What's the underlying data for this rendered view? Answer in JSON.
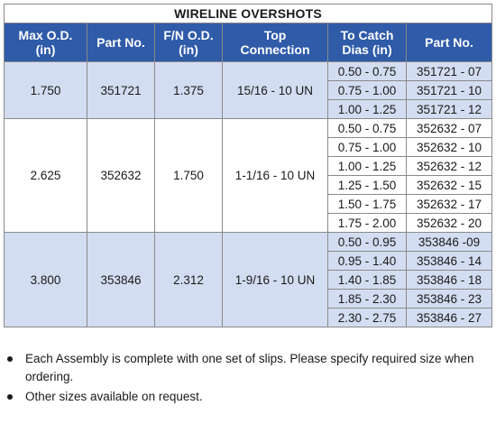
{
  "table": {
    "title": "WIRELINE OVERSHOTS",
    "headers": [
      [
        "Max O.D.",
        "(in)"
      ],
      [
        "Part No.",
        ""
      ],
      [
        "F/N O.D.",
        "(in)"
      ],
      [
        "Top",
        "Connection"
      ],
      [
        "To Catch",
        "Dias (in)"
      ],
      [
        "Part No.",
        ""
      ]
    ],
    "groups": [
      {
        "max_od": "1.750",
        "part_no": "351721",
        "fn_od": "1.375",
        "top_connection": "15/16 - 10 UN",
        "rows": [
          {
            "catch": "0.50 - 0.75",
            "part": "351721 - 07"
          },
          {
            "catch": "0.75 - 1.00",
            "part": "351721 - 10"
          },
          {
            "catch": "1.00 - 1.25",
            "part": "351721 - 12"
          }
        ]
      },
      {
        "max_od": "2.625",
        "part_no": "352632",
        "fn_od": "1.750",
        "top_connection": "1-1/16 - 10 UN",
        "rows": [
          {
            "catch": "0.50 - 0.75",
            "part": "352632 - 07"
          },
          {
            "catch": "0.75 - 1.00",
            "part": "352632 - 10"
          },
          {
            "catch": "1.00 - 1.25",
            "part": "352632 - 12"
          },
          {
            "catch": "1.25 - 1.50",
            "part": "352632 - 15"
          },
          {
            "catch": "1.50 - 1.75",
            "part": "352632 - 17"
          },
          {
            "catch": "1.75 - 2.00",
            "part": "352632 - 20"
          }
        ]
      },
      {
        "max_od": "3.800",
        "part_no": "353846",
        "fn_od": "2.312",
        "top_connection": "1-9/16 - 10 UN",
        "rows": [
          {
            "catch": "0.50 - 0.95",
            "part": "353846 -09"
          },
          {
            "catch": "0.95 - 1.40",
            "part": "353846 - 14"
          },
          {
            "catch": "1.40 - 1.85",
            "part": "353846 - 18"
          },
          {
            "catch": "1.85 - 2.30",
            "part": "353846 - 23"
          },
          {
            "catch": "2.30 - 2.75",
            "part": "353846 - 27"
          }
        ]
      }
    ]
  },
  "notes": [
    "Each Assembly is complete with one set of slips. Please specify required size when ordering.",
    "Other sizes available on request."
  ],
  "colors": {
    "header_bg": "#2f5ba8",
    "band_blue": "#d3ddf1",
    "band_white": "#ffffff"
  }
}
